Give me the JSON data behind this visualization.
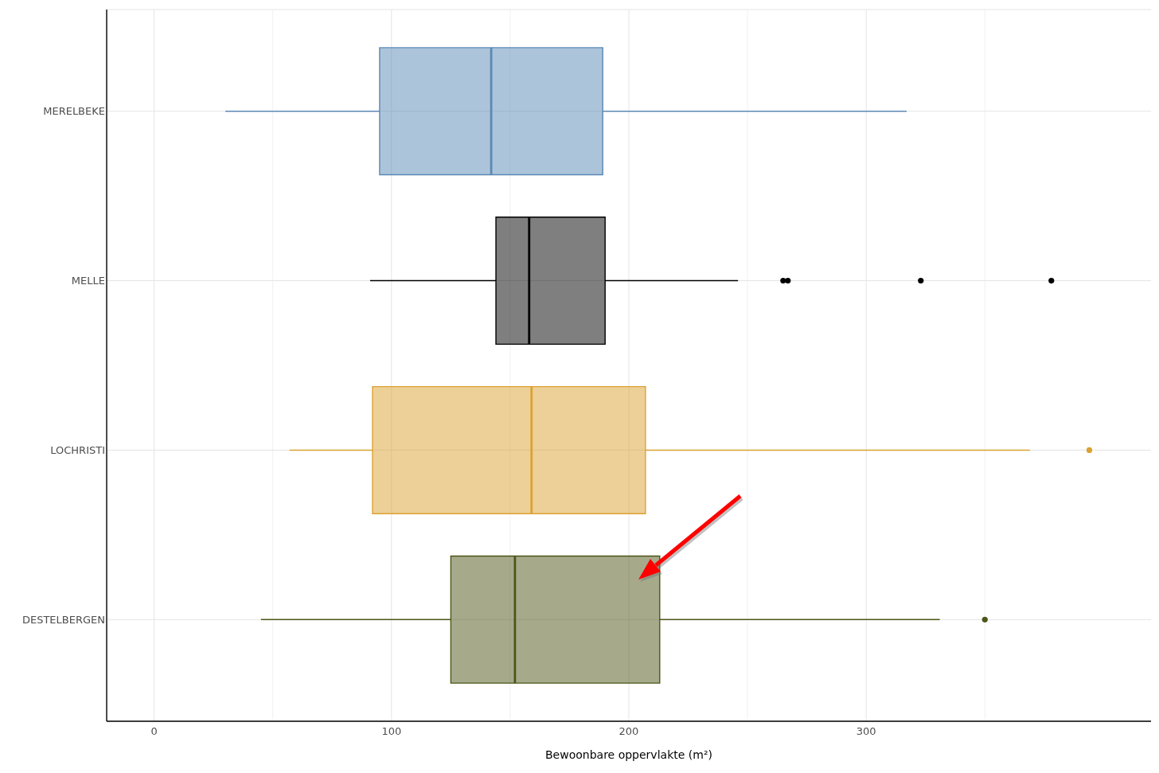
{
  "chart_data": {
    "type": "box",
    "orientation": "horizontal",
    "xlabel": "Bewoonbare oppervlakte (m²)",
    "categories": [
      "MERELBEKE",
      "MELLE",
      "LOCHRISTI",
      "DESTELBERGEN"
    ],
    "colors": [
      "#5a89b5",
      "#000000",
      "#dba232",
      "#4d5517"
    ],
    "boxes": [
      {
        "low": 30,
        "q1": 95,
        "median": 142,
        "q3": 189,
        "high": 317
      },
      {
        "low": 91,
        "q1": 144,
        "median": 158,
        "q3": 190,
        "high": 246,
        "outliers": [
          265,
          267,
          323,
          378
        ]
      },
      {
        "low": 57,
        "q1": 92,
        "median": 159,
        "q3": 207,
        "high": 369,
        "outliers": [
          394
        ]
      },
      {
        "low": 45,
        "q1": 125,
        "median": 152,
        "q3": 213,
        "high": 331,
        "outliers": [
          350
        ]
      }
    ],
    "xlim": [
      -20,
      420
    ],
    "xticks": [
      0,
      {
        "value": 50,
        "label": null
      },
      100,
      {
        "value": 150,
        "label": null
      },
      200,
      {
        "value": 250,
        "label": null
      },
      300,
      {
        "value": 350,
        "label": null
      }
    ],
    "grid": true
  }
}
